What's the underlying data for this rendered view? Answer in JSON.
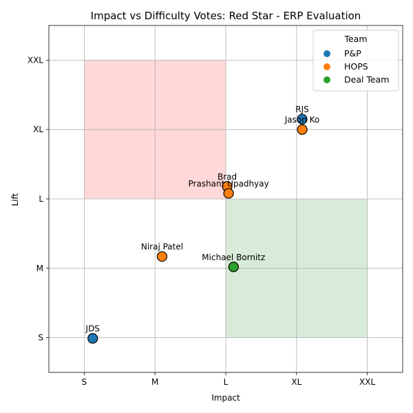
{
  "chart_data": {
    "type": "scatter",
    "title": "Impact vs Difficulty Votes: Red Star - ERP Evaluation",
    "xlabel": "Impact",
    "ylabel": "Lift",
    "x_categories": [
      "S",
      "M",
      "L",
      "XL",
      "XXL"
    ],
    "y_categories": [
      "S",
      "M",
      "L",
      "XL",
      "XXL"
    ],
    "xlim": [
      -0.5,
      4.5
    ],
    "ylim": [
      -0.5,
      4.5
    ],
    "grid": true,
    "regions": [
      {
        "x": [
          0,
          2
        ],
        "y": [
          2,
          4
        ],
        "color": "#ffd8d8"
      },
      {
        "x": [
          2,
          4
        ],
        "y": [
          0,
          2
        ],
        "color": "#d8ead8"
      }
    ],
    "legend": {
      "title": "Team",
      "placement": "top-right",
      "entries": [
        {
          "name": "P&P",
          "color": "#1f77b4"
        },
        {
          "name": "HOPS",
          "color": "#ff7f0e"
        },
        {
          "name": "Deal Team",
          "color": "#2ca02c"
        }
      ]
    },
    "points": [
      {
        "label": "JDS",
        "team": "P&P",
        "x": 0.12,
        "y": -0.01,
        "color": "#1f77b4"
      },
      {
        "label": "RJS",
        "team": "P&P",
        "x": 3.08,
        "y": 3.15,
        "color": "#1f77b4"
      },
      {
        "label": "Jason Ko",
        "team": "HOPS",
        "x": 3.08,
        "y": 3.0,
        "color": "#ff7f0e"
      },
      {
        "label": "Brad",
        "team": "HOPS",
        "x": 2.02,
        "y": 2.18,
        "color": "#ff7f0e"
      },
      {
        "label": "Prashant Upadhyay",
        "team": "HOPS",
        "x": 2.04,
        "y": 2.08,
        "color": "#ff7f0e"
      },
      {
        "label": "Niraj Patel",
        "team": "HOPS",
        "x": 1.1,
        "y": 1.17,
        "color": "#ff7f0e"
      },
      {
        "label": "Michael Bornitz",
        "team": "Deal Team",
        "x": 2.11,
        "y": 1.02,
        "color": "#2ca02c"
      }
    ]
  }
}
